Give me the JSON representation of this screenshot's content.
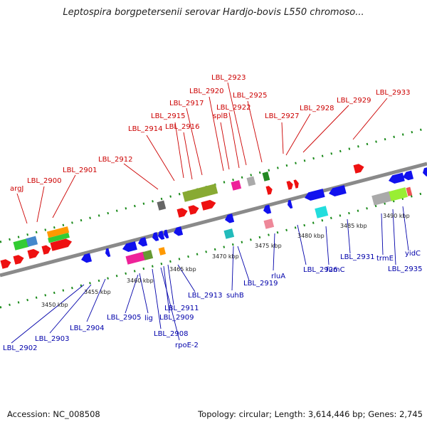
{
  "title": "Leptospira borgpetersenii serovar Hardjo-bovis L550 chromoso...",
  "footer": {
    "accession": "Accession: NC_008508",
    "topology": "Topology: circular; Length: 3,614,446 bp; Genes: 2,745"
  },
  "colors": {
    "forward_label": "#cc0000",
    "reverse_label": "#0000aa",
    "axis": "#8a8a8a",
    "tick_green": "#1a8a1a"
  },
  "ticks": [
    "3450 kbp",
    "3455 kbp",
    "3460 kbp",
    "3465 kbp",
    "3470 kbp",
    "3475 kbp",
    "3480 kbp",
    "3485 kbp",
    "3490 kbp"
  ],
  "forward_labels": [
    "argJ",
    "LBL_2900",
    "LBL_2901",
    "LBL_2912",
    "LBL_2914",
    "LBL_2915",
    "LBL_2916",
    "LBL_2917",
    "LBL_2920",
    "splB",
    "LBL_2922",
    "LBL_2923",
    "LBL_2925",
    "LBL_2927",
    "LBL_2928",
    "LBL_2929",
    "LBL_2933"
  ],
  "reverse_labels": [
    "LBL_2902",
    "LBL_2903",
    "LBL_2904",
    "LBL_2905",
    "lig",
    "LBL_2908",
    "rpoE-2",
    "LBL_2909",
    "LBL_2911",
    "LBL_2913",
    "suhB",
    "LBL_2919",
    "rluA",
    "LBL_2926",
    "fumC",
    "LBL_2931",
    "trmE",
    "LBL_2935",
    "yidC"
  ]
}
